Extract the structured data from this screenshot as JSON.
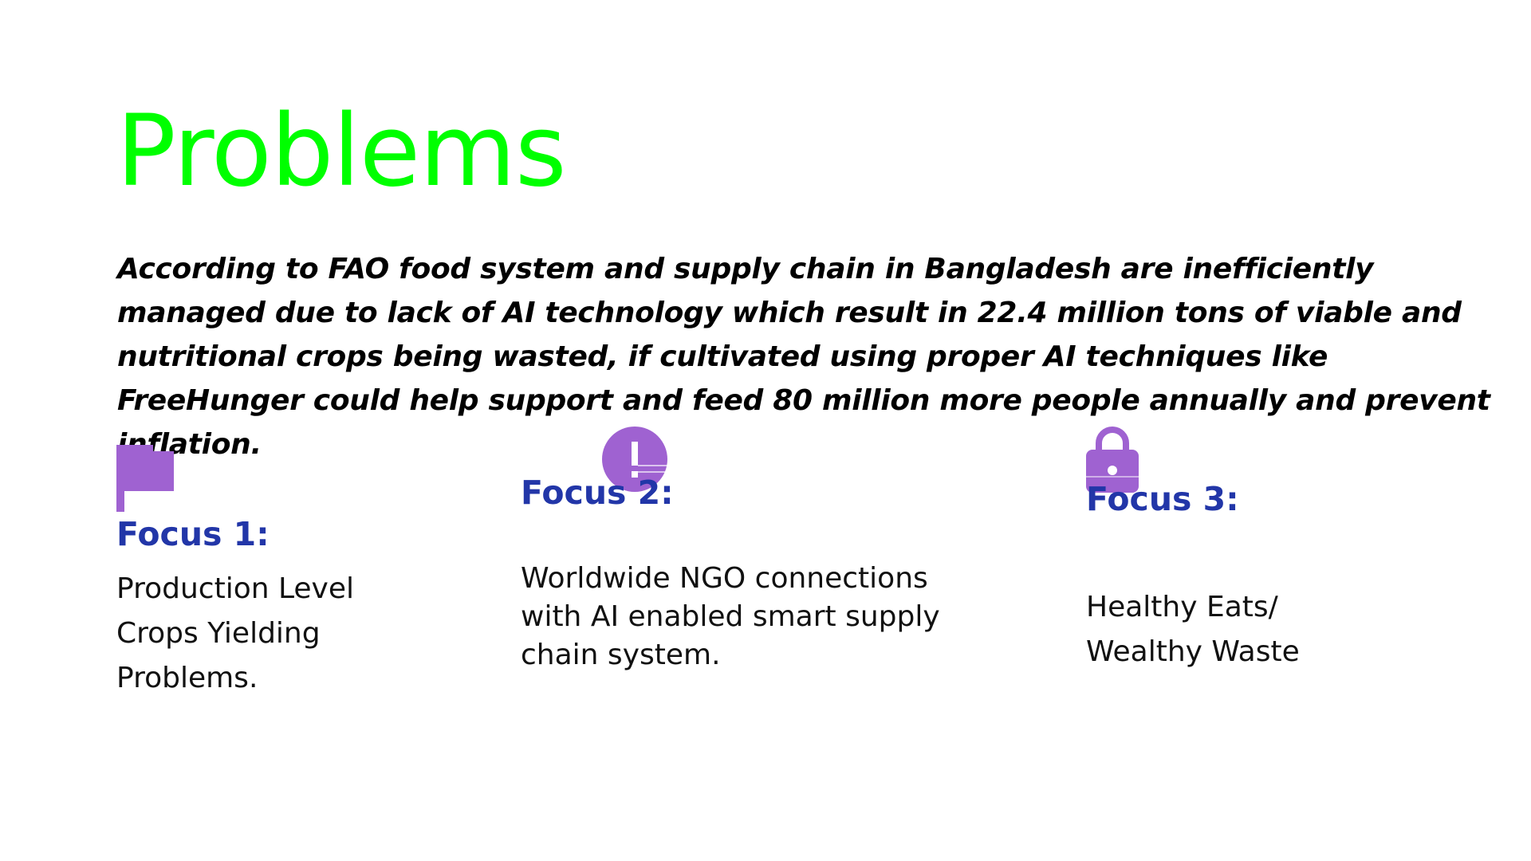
{
  "slide": {
    "title": "Problems",
    "intro": "According to FAO food system and supply chain in Bangladesh are inefficiently managed due to lack of AI technology which result in 22.4 million tons of viable and nutritional crops being wasted, if cultivated using proper AI techniques like FreeHunger  could help support and feed 80 million more people annually and prevent inflation.",
    "colors": {
      "title": "#00ff00",
      "focus_heading": "#2236a8",
      "icon": "#9f62d1"
    },
    "focuses": [
      {
        "icon": "flag-icon",
        "heading": "Focus 1:",
        "description": "Production Level Crops Yielding Problems."
      },
      {
        "icon": "exclamation-circle-icon",
        "heading": "Focus 2:",
        "description": "Worldwide NGO connections with AI enabled smart supply chain system."
      },
      {
        "icon": "lock-icon",
        "heading": "Focus 3:",
        "description": "Healthy Eats/ Wealthy Waste"
      }
    ]
  }
}
